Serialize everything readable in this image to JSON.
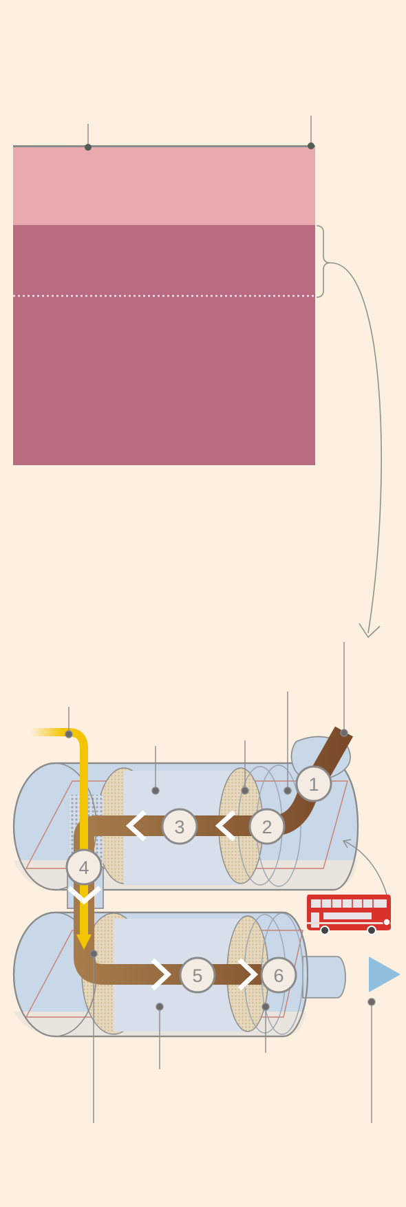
{
  "colors": {
    "background": "#fdf0e1",
    "upper_band": "#e9aaad",
    "lower_band": "#b96b80",
    "connector": "#8a948a",
    "exhaust_in": "#7a4a2a",
    "exhaust_out": "#8fbfdc",
    "urea": "#f2c500",
    "cylinder": "#c9d8e8",
    "filter_mesh": "#e2d3b4",
    "step_circle": "#f4ece2",
    "bus_red": "#d9312b"
  },
  "icons": [
    "pipe-icon",
    "bus-icon"
  ],
  "steps": [
    {
      "label": "1"
    },
    {
      "label": "2"
    },
    {
      "label": "3"
    },
    {
      "label": "4"
    },
    {
      "label": "5"
    },
    {
      "label": "6"
    }
  ]
}
